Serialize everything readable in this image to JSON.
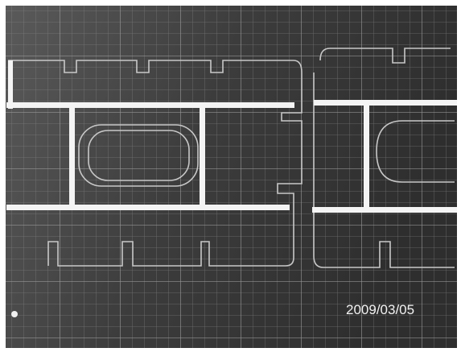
{
  "timestamp": "2009/03/05"
}
